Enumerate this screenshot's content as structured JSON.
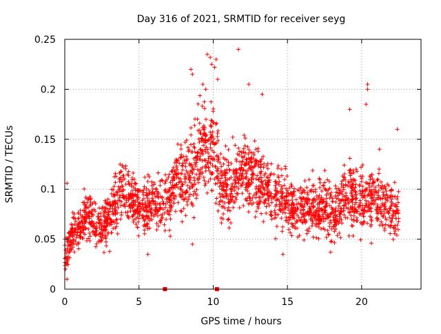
{
  "chart_data": {
    "type": "scatter",
    "title": "Day 316 of 2021, SRMTID for receiver seyg",
    "xlabel": "GPS time / hours",
    "ylabel": "SRMTID / TECUs",
    "xlim": [
      0,
      24
    ],
    "ylim": [
      0,
      0.25
    ],
    "xticks": [
      0,
      5,
      10,
      15,
      20
    ],
    "xtick_labels": [
      "0",
      "5",
      "10",
      "15",
      "20"
    ],
    "yticks": [
      0,
      0.05,
      0.1,
      0.15,
      0.2,
      0.25
    ],
    "ytick_labels": [
      "0",
      "0.05",
      "0.1",
      "0.15",
      "0.2",
      "0.25"
    ],
    "grid": true,
    "marker": "plus",
    "color": "#ff0000",
    "envelope": {
      "x": [
        0,
        0.5,
        1,
        1.5,
        2,
        2.5,
        3,
        3.5,
        4,
        4.5,
        5,
        5.5,
        6,
        6.5,
        7,
        7.5,
        8,
        8.5,
        9,
        9.5,
        10,
        10.5,
        11,
        11.5,
        12,
        12.5,
        13,
        13.5,
        14,
        14.5,
        15,
        15.5,
        16,
        16.5,
        17,
        17.5,
        18,
        18.5,
        19,
        19.5,
        20,
        20.5,
        21,
        21.5,
        22,
        22.5
      ],
      "center": [
        0.035,
        0.055,
        0.06,
        0.075,
        0.07,
        0.06,
        0.07,
        0.09,
        0.1,
        0.09,
        0.085,
        0.08,
        0.09,
        0.085,
        0.09,
        0.11,
        0.11,
        0.115,
        0.13,
        0.14,
        0.15,
        0.11,
        0.1,
        0.11,
        0.12,
        0.12,
        0.11,
        0.1,
        0.09,
        0.09,
        0.09,
        0.08,
        0.08,
        0.08,
        0.08,
        0.085,
        0.07,
        0.08,
        0.1,
        0.09,
        0.09,
        0.085,
        0.09,
        0.085,
        0.08,
        0.07
      ],
      "spread": [
        0.02,
        0.02,
        0.025,
        0.025,
        0.025,
        0.025,
        0.03,
        0.03,
        0.035,
        0.03,
        0.03,
        0.03,
        0.035,
        0.035,
        0.035,
        0.04,
        0.04,
        0.045,
        0.05,
        0.055,
        0.055,
        0.045,
        0.04,
        0.04,
        0.04,
        0.04,
        0.04,
        0.04,
        0.035,
        0.035,
        0.035,
        0.03,
        0.03,
        0.03,
        0.03,
        0.035,
        0.035,
        0.035,
        0.04,
        0.04,
        0.04,
        0.04,
        0.04,
        0.035,
        0.035,
        0.03
      ],
      "n_points": 2400
    },
    "highlights": [
      {
        "x": 9.6,
        "y": 0.235
      },
      {
        "x": 9.8,
        "y": 0.232
      },
      {
        "x": 10.2,
        "y": 0.23
      },
      {
        "x": 9.9,
        "y": 0.225
      },
      {
        "x": 10.1,
        "y": 0.222
      },
      {
        "x": 11.7,
        "y": 0.24
      },
      {
        "x": 8.5,
        "y": 0.22
      },
      {
        "x": 8.6,
        "y": 0.215
      },
      {
        "x": 9.3,
        "y": 0.205
      },
      {
        "x": 9.5,
        "y": 0.2
      },
      {
        "x": 10.3,
        "y": 0.21
      },
      {
        "x": 13.3,
        "y": 0.195
      },
      {
        "x": 12.4,
        "y": 0.205
      },
      {
        "x": 20.4,
        "y": 0.2
      },
      {
        "x": 20.4,
        "y": 0.205
      },
      {
        "x": 19.2,
        "y": 0.18
      },
      {
        "x": 20.3,
        "y": 0.185
      },
      {
        "x": 21.2,
        "y": 0.14
      },
      {
        "x": 22.4,
        "y": 0.16
      },
      {
        "x": 0.15,
        "y": 0.01
      },
      {
        "x": 0.05,
        "y": 0.02
      },
      {
        "x": 0.2,
        "y": 0.03
      },
      {
        "x": 0.15,
        "y": 0.106
      },
      {
        "x": 8.6,
        "y": 0.045
      },
      {
        "x": 5.6,
        "y": 0.035
      },
      {
        "x": 14.7,
        "y": 0.035
      }
    ],
    "zero_markers": [
      {
        "x": 6.75,
        "y": 0
      },
      {
        "x": 10.25,
        "y": 0
      }
    ]
  }
}
